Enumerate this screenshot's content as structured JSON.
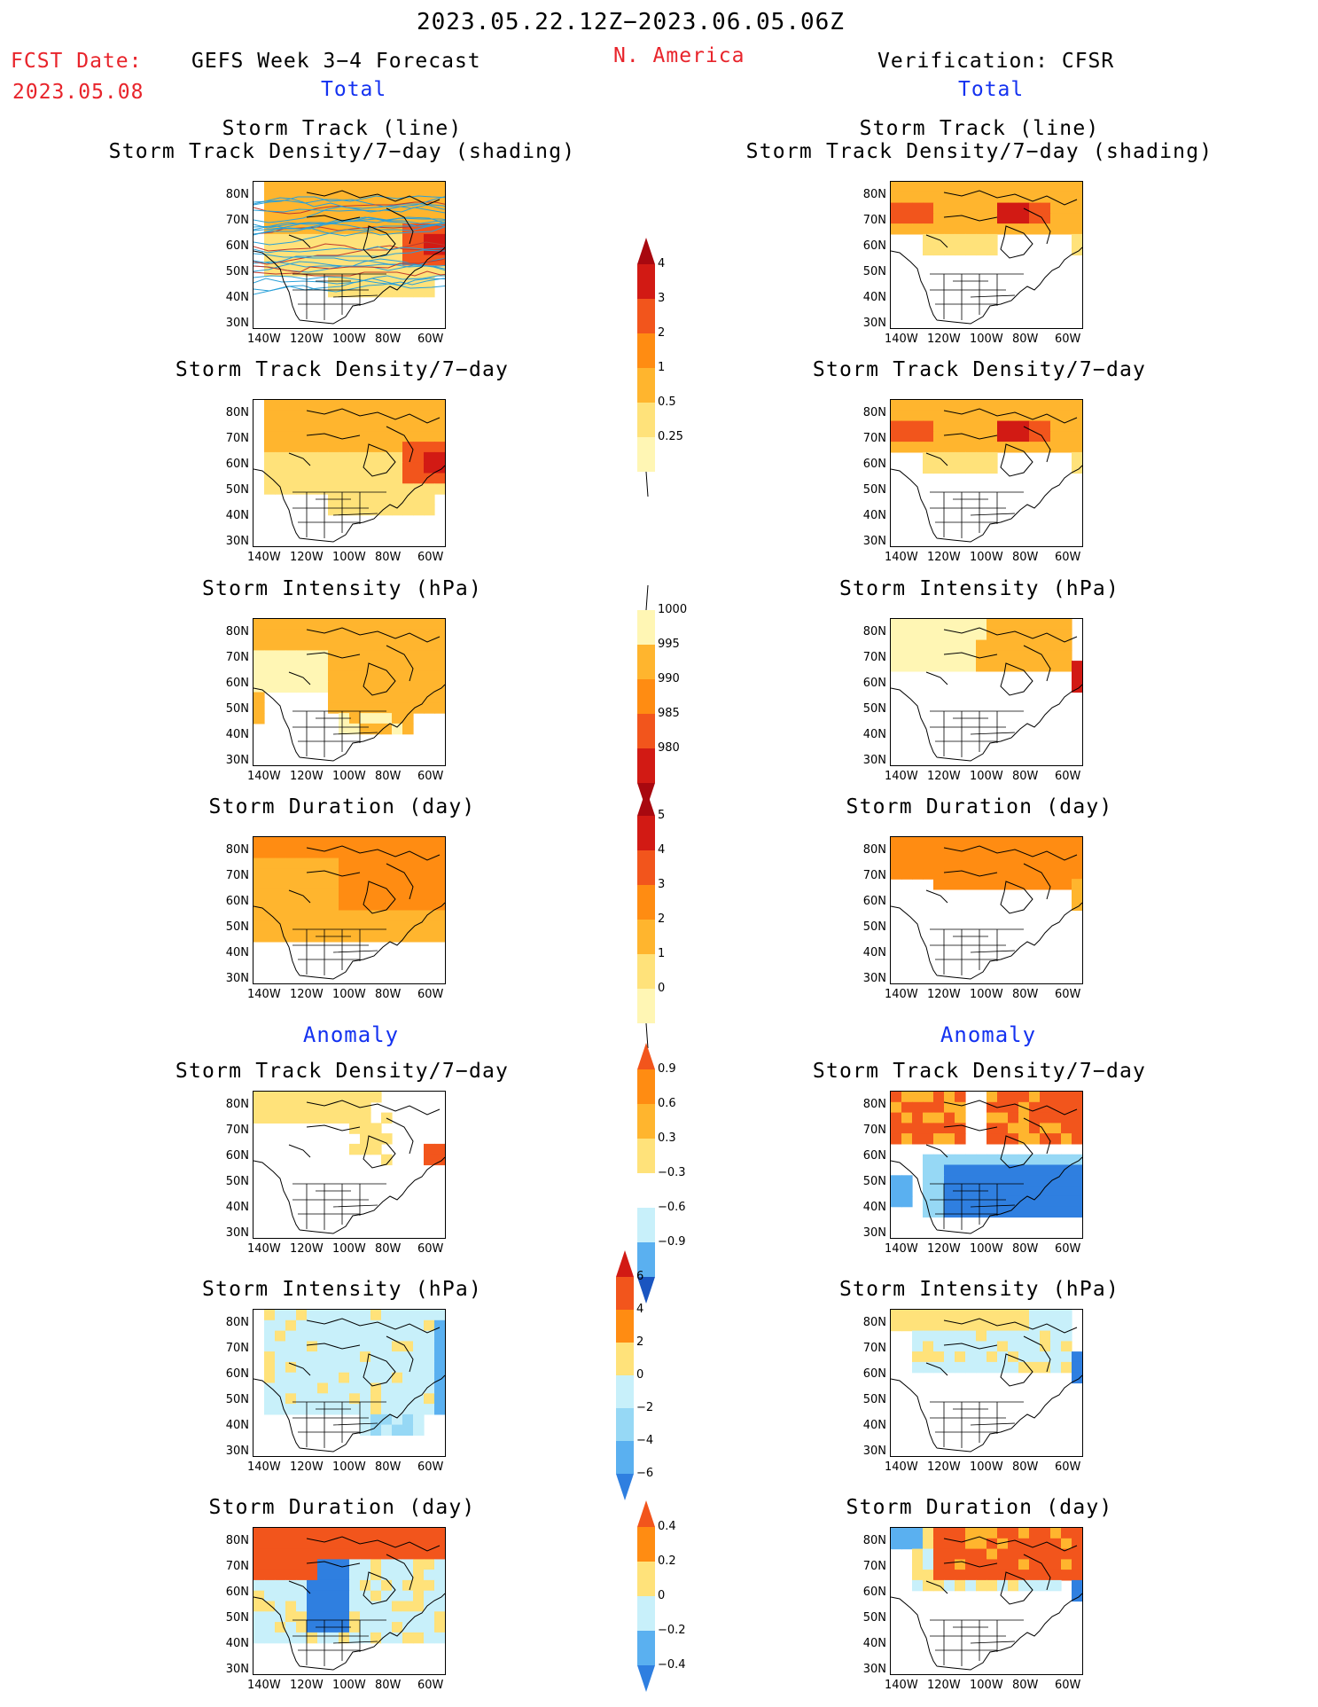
{
  "header": {
    "period": "2023.05.22.12Z−2023.06.05.06Z",
    "region": "N. America",
    "fcst_label": "FCST Date:",
    "fcst_date": "2023.05.08",
    "forecast_title": "GEFS Week 3−4 Forecast",
    "verification_title": "Verification: CFSR",
    "total_label": "Total",
    "anomaly_label": "Anomaly"
  },
  "panel_titles": {
    "track_line": "Storm Track (line)",
    "track_shading": "Storm Track Density/7−day (shading)",
    "density": "Storm Track Density/7−day",
    "intensity": "Storm Intensity (hPa)",
    "duration": "Storm Duration (day)"
  },
  "axes": {
    "lat_labels": [
      "80N",
      "70N",
      "60N",
      "50N",
      "40N",
      "30N"
    ],
    "lon_labels": [
      "140W",
      "120W",
      "100W",
      "80W",
      "60W"
    ]
  },
  "colorbars": {
    "density_total": [
      "4",
      "3",
      "2",
      "1",
      "0.5",
      "0.25"
    ],
    "intensity_total": [
      "1000",
      "995",
      "990",
      "985",
      "980"
    ],
    "duration_total": [
      "5",
      "4",
      "3",
      "2",
      "1",
      "0"
    ],
    "density_anom": [
      "0.9",
      "0.6",
      "0.3",
      "−0.3",
      "−0.6",
      "−0.9"
    ],
    "intensity_anom": [
      "6",
      "4",
      "2",
      "0",
      "−2",
      "−4",
      "−6"
    ],
    "duration_anom": [
      "0.4",
      "0.2",
      "0",
      "−0.2",
      "−0.4"
    ]
  },
  "colors": {
    "header_red": "#e8242b",
    "label_blue": "#1432f0",
    "warm": [
      "#fff6b4",
      "#ffe27a",
      "#ffb52e",
      "#ff8c12",
      "#f2551c",
      "#d21a14",
      "#a8080f"
    ],
    "cool": [
      "#c8f0fa",
      "#96d8f5",
      "#5ab0f0",
      "#2f7fe0",
      "#1a55c0"
    ],
    "track_line": "#2aa0d8"
  }
}
